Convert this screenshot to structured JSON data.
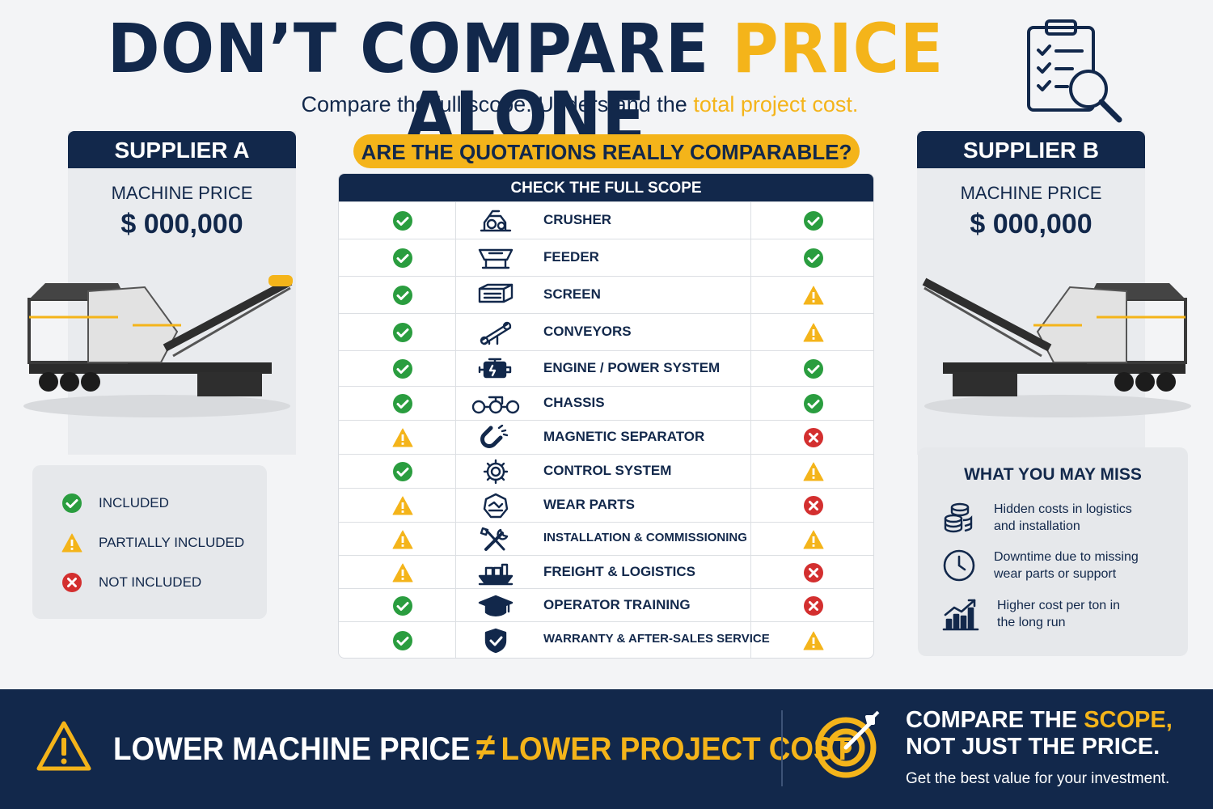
{
  "title": {
    "part1": "DON’T COMPARE ",
    "highlight": "PRICE",
    "part2": " ALONE"
  },
  "subtitle": {
    "part1": "Compare the full scope. Understand the ",
    "highlight": "total project cost."
  },
  "supplier_a": {
    "name": "SUPPLIER A",
    "price_label": "MACHINE PRICE",
    "price": "$ 000,000"
  },
  "supplier_b": {
    "name": "SUPPLIER B",
    "price_label": "MACHINE PRICE",
    "price": "$ 000,000"
  },
  "question": "ARE THE QUOTATIONS REALLY COMPARABLE?",
  "table": {
    "header": "CHECK THE FULL SCOPE",
    "rows": [
      {
        "label": "CRUSHER",
        "icon": "crusher-icon",
        "a": "included",
        "b": "included"
      },
      {
        "label": "FEEDER",
        "icon": "feeder-icon",
        "a": "included",
        "b": "included"
      },
      {
        "label": "SCREEN",
        "icon": "screen-icon",
        "a": "included",
        "b": "partial"
      },
      {
        "label": "CONVEYORS",
        "icon": "conveyor-icon",
        "a": "included",
        "b": "partial"
      },
      {
        "label": "ENGINE / POWER SYSTEM",
        "icon": "engine-icon",
        "a": "included",
        "b": "included"
      },
      {
        "label": "CHASSIS",
        "icon": "chassis-icon",
        "a": "included",
        "b": "included"
      },
      {
        "label": "MAGNETIC SEPARATOR",
        "icon": "magnet-icon",
        "a": "partial",
        "b": "not"
      },
      {
        "label": "CONTROL SYSTEM",
        "icon": "gear-icon",
        "a": "included",
        "b": "partial"
      },
      {
        "label": "WEAR PARTS",
        "icon": "wear-parts-icon",
        "a": "partial",
        "b": "not"
      },
      {
        "label": "INSTALLATION & COMMISSIONING",
        "icon": "tools-icon",
        "a": "partial",
        "b": "partial"
      },
      {
        "label": "FREIGHT & LOGISTICS",
        "icon": "ship-icon",
        "a": "partial",
        "b": "not"
      },
      {
        "label": "OPERATOR TRAINING",
        "icon": "graduation-cap-icon",
        "a": "included",
        "b": "not"
      },
      {
        "label": "WARRANTY & AFTER-SALES SERVICE",
        "icon": "shield-check-icon",
        "a": "included",
        "b": "partial"
      }
    ]
  },
  "legend": {
    "included": "INCLUDED",
    "partial": "PARTIALLY INCLUDED",
    "not": "NOT INCLUDED"
  },
  "miss": {
    "title": "WHAT YOU MAY MISS",
    "items": [
      {
        "icon": "coins-icon",
        "line1": "Hidden costs in logistics",
        "line2": "and installation"
      },
      {
        "icon": "clock-icon",
        "line1": "Downtime due to missing",
        "line2": "wear parts or support"
      },
      {
        "icon": "chart-up-icon",
        "line1": "Higher cost per ton in",
        "line2": "the long run"
      }
    ]
  },
  "footer": {
    "left1": "LOWER MACHINE PRICE",
    "neq": "≠",
    "left2": "LOWER PROJECT COST",
    "right_l1a": "COMPARE THE ",
    "right_l1b": "SCOPE,",
    "right_l2": "NOT JUST THE PRICE.",
    "right_l3": "Get the best value for your investment."
  },
  "colors": {
    "navy": "#12284b",
    "gold": "#f4b41a",
    "green": "#2a9d3f",
    "red": "#d32f2f"
  }
}
